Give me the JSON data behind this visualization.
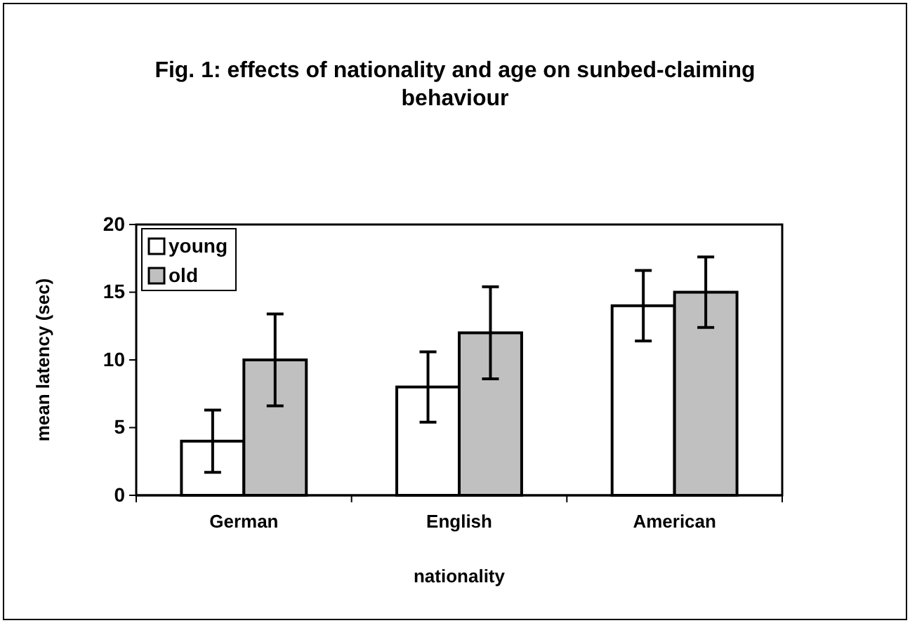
{
  "chart_data": {
    "type": "bar",
    "title": "Fig. 1: effects of nationality and age on sunbed-claiming behaviour",
    "xlabel": "nationality",
    "ylabel": "mean latency (sec)",
    "categories": [
      "German",
      "English",
      "American"
    ],
    "series": [
      {
        "name": "young",
        "color": "#ffffff",
        "values": [
          4,
          8,
          14
        ],
        "errors": [
          2.3,
          2.6,
          2.6
        ]
      },
      {
        "name": "old",
        "color": "#c0c0c0",
        "values": [
          10,
          12,
          15
        ],
        "errors": [
          3.4,
          3.4,
          2.6
        ]
      }
    ],
    "ylim": [
      0,
      20
    ],
    "yticks": [
      0,
      5,
      10,
      15,
      20
    ],
    "grid": false,
    "legend": "top left"
  }
}
